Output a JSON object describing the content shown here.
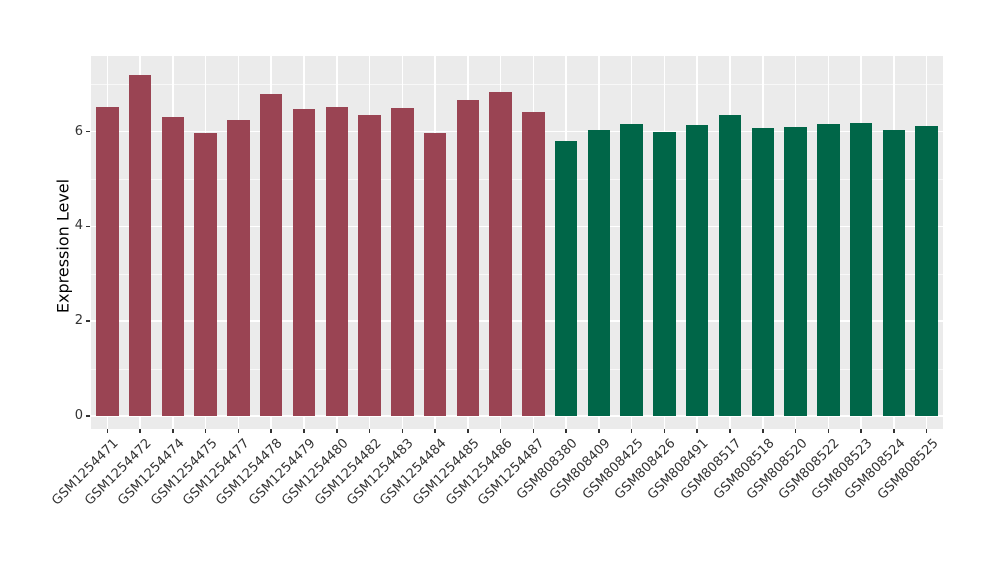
{
  "chart_data": {
    "type": "bar",
    "title": "",
    "xlabel": "",
    "ylabel": "Expression Level",
    "yticks": [
      0,
      2,
      4,
      6
    ],
    "ylim": [
      -0.27,
      7.59
    ],
    "grid": "on",
    "legend": "none",
    "panel_background": "#ebebeb",
    "gridline_color": "#ffffff",
    "categories": [
      "GSM1254471",
      "GSM1254472",
      "GSM1254474",
      "GSM1254475",
      "GSM1254477",
      "GSM1254478",
      "GSM1254479",
      "GSM1254480",
      "GSM1254482",
      "GSM1254483",
      "GSM1254484",
      "GSM1254485",
      "GSM1254486",
      "GSM1254487",
      "GSM808380",
      "GSM808409",
      "GSM808425",
      "GSM808426",
      "GSM808491",
      "GSM808517",
      "GSM808518",
      "GSM808520",
      "GSM808522",
      "GSM808523",
      "GSM808524",
      "GSM808525"
    ],
    "values": [
      6.52,
      7.2,
      6.31,
      5.98,
      6.24,
      6.79,
      6.48,
      6.52,
      6.36,
      6.5,
      5.97,
      6.66,
      6.84,
      6.41,
      5.8,
      6.04,
      6.17,
      6.0,
      6.13,
      6.35,
      6.08,
      6.1,
      6.15,
      6.18,
      6.03,
      6.11
    ],
    "bar_groups": [
      {
        "name": "maroon-group",
        "color": "#9A4453",
        "first_index": 0,
        "count": 14
      },
      {
        "name": "green-group",
        "color": "#006648",
        "first_index": 14,
        "count": 12
      }
    ]
  }
}
